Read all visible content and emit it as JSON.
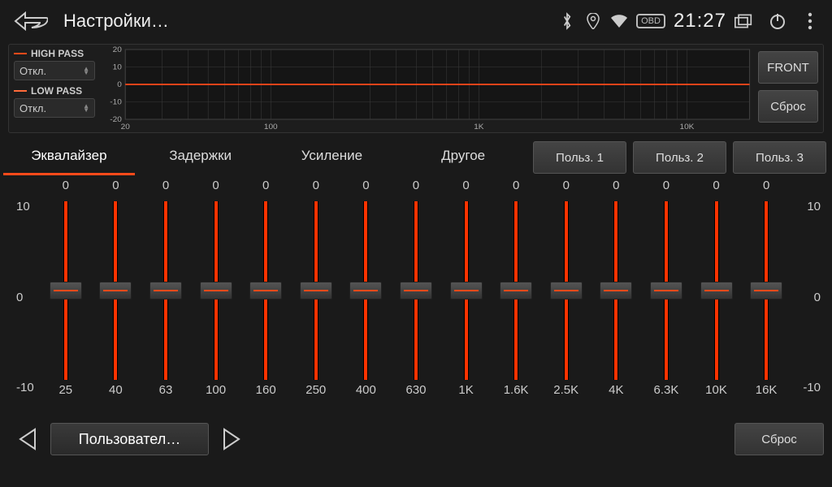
{
  "colors": {
    "bg": "#1a1a1a",
    "accent": "#ff4a1a",
    "slider_fill": "#ff3300",
    "grid": "#3a3a3a",
    "graph_bg": "#151515",
    "high_pass_line": "#ff4a1a",
    "low_pass_line": "#ff6a3a"
  },
  "status": {
    "title": "Настройки…",
    "time": "21:27",
    "obd_label": "OBD"
  },
  "filters": {
    "high_pass_label": "HIGH PASS",
    "low_pass_label": "LOW PASS",
    "high_pass_value": "Откл.",
    "low_pass_value": "Откл."
  },
  "graph": {
    "y_ticks": [
      20,
      10,
      0,
      -10,
      -20
    ],
    "x_labels": [
      "20",
      "100",
      "1K",
      "10K"
    ],
    "line_y": 0
  },
  "right_buttons": {
    "front": "FRONT",
    "reset": "Сброс"
  },
  "tabs": {
    "items": [
      {
        "label": "Эквалайзер",
        "active": true
      },
      {
        "label": "Задержки",
        "active": false
      },
      {
        "label": "Усиление",
        "active": false
      },
      {
        "label": "Другое",
        "active": false
      }
    ]
  },
  "presets": {
    "p1": "Польз. 1",
    "p2": "Польз. 2",
    "p3": "Польз. 3"
  },
  "eq": {
    "scale": {
      "max": "10",
      "mid": "0",
      "min": "-10"
    },
    "bands": [
      {
        "value": 0,
        "freq": "25"
      },
      {
        "value": 0,
        "freq": "40"
      },
      {
        "value": 0,
        "freq": "63"
      },
      {
        "value": 0,
        "freq": "100"
      },
      {
        "value": 0,
        "freq": "160"
      },
      {
        "value": 0,
        "freq": "250"
      },
      {
        "value": 0,
        "freq": "400"
      },
      {
        "value": 0,
        "freq": "630"
      },
      {
        "value": 0,
        "freq": "1K"
      },
      {
        "value": 0,
        "freq": "1.6K"
      },
      {
        "value": 0,
        "freq": "2.5K"
      },
      {
        "value": 0,
        "freq": "4K"
      },
      {
        "value": 0,
        "freq": "6.3K"
      },
      {
        "value": 0,
        "freq": "10K"
      },
      {
        "value": 0,
        "freq": "16K"
      }
    ]
  },
  "bottom": {
    "preset_name": "Пользовател…",
    "reset": "Сброс"
  }
}
